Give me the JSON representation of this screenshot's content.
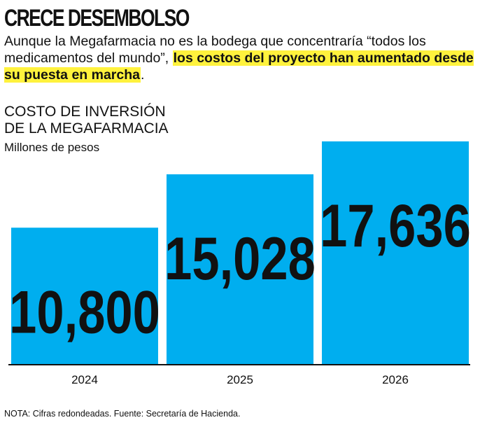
{
  "headline": "CRECE DESEMBOLSO",
  "intro": {
    "text_plain": "Aunque la Megafarmacia no es la bodega que concentraría “todos los medicamentos del mundo”, ",
    "text_highlight": "los costos del proyecto han aumentado desde su puesta en marcha",
    "text_end": "."
  },
  "chart_data": {
    "type": "bar",
    "title_line1": "COSTO DE INVERSIÓN",
    "title_line2": "DE LA MEGAFARMACIA",
    "ylabel": "Millones de pesos",
    "categories": [
      "2024",
      "2025",
      "2026"
    ],
    "values": [
      10800,
      15028,
      17636
    ],
    "value_labels": [
      "10,800",
      "15,028",
      "17,636"
    ],
    "ylim": [
      0,
      17636
    ],
    "bar_color": "#00aeef",
    "grid": false
  },
  "note": "NOTA: Cifras redondeadas. Fuente: Secretaría de Hacienda.",
  "colors": {
    "highlight": "#fff23d",
    "text": "#111111"
  }
}
